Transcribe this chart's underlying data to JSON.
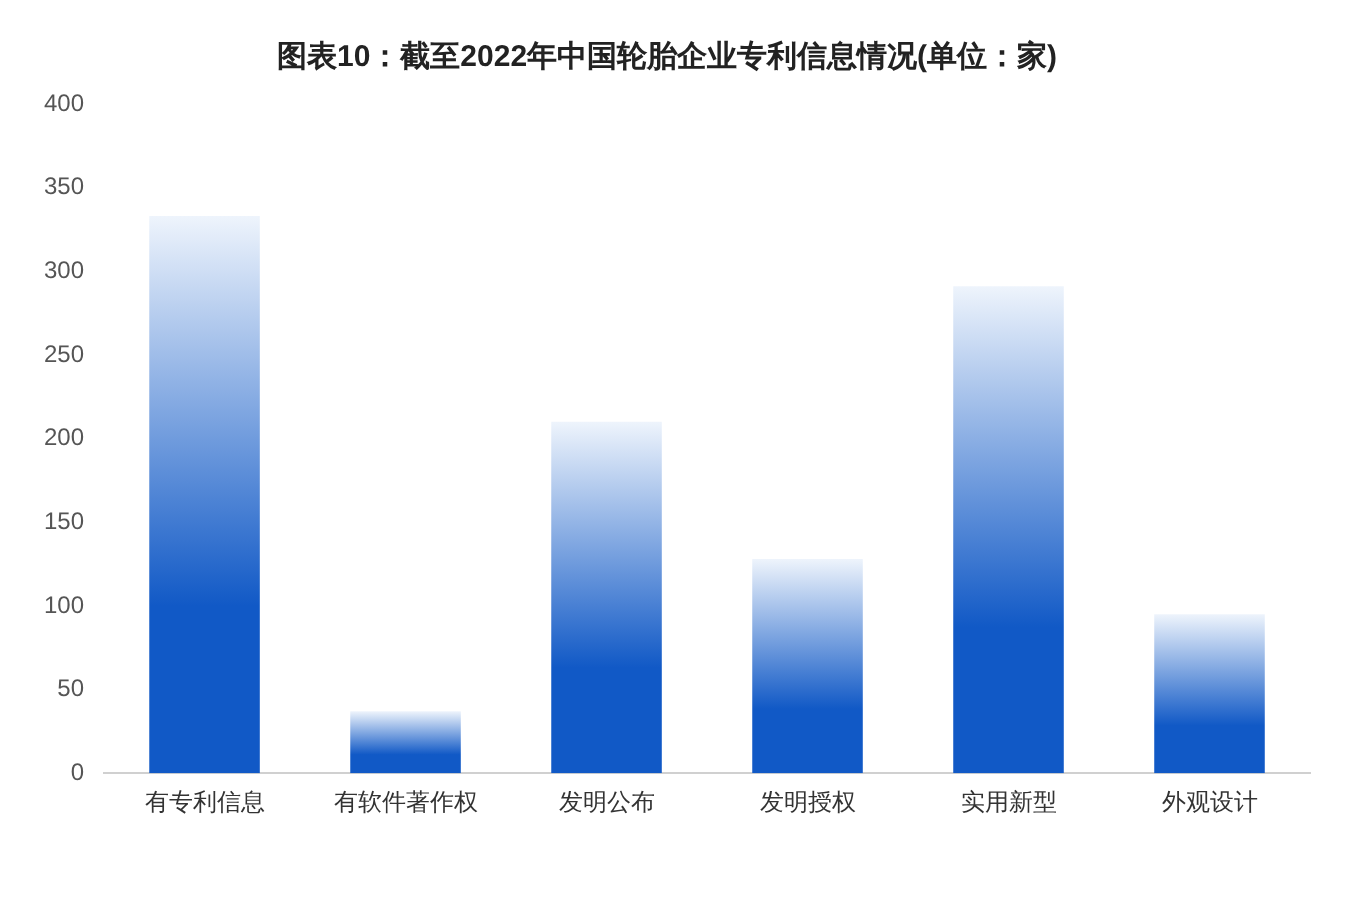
{
  "chart_data": {
    "type": "bar",
    "title": "图表10：截至2022年中国轮胎企业专利信息情况(单位：家)",
    "categories": [
      "有专利信息",
      "有软件著作权",
      "发明公布",
      "发明授权",
      "实用新型",
      "外观设计"
    ],
    "values": [
      333,
      37,
      210,
      128,
      291,
      95
    ],
    "color": "#1159c6",
    "ylim": [
      0,
      400
    ],
    "yticks": [
      0,
      50,
      100,
      150,
      200,
      250,
      300,
      350,
      400
    ],
    "grid": false,
    "legend": false
  }
}
